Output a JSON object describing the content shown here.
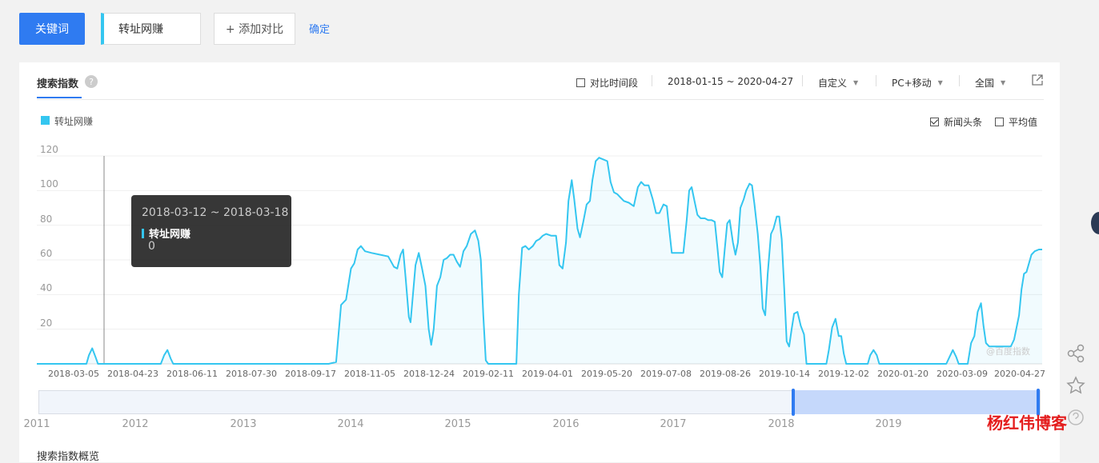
{
  "topbar": {
    "keyword_button": "关键词",
    "keyword_value": "转址网赚",
    "add_compare": "+ 添加对比",
    "confirm": "确定"
  },
  "panel": {
    "tab": "搜索指数",
    "help": "?",
    "filters": {
      "compare_period": "对比时间段",
      "date_range": "2018-01-15 ~ 2020-04-27",
      "custom": "自定义",
      "device": "PC+移动",
      "region": "全国"
    },
    "legend": "转址网赚",
    "options": {
      "news": "新闻头条",
      "avg": "平均值"
    },
    "watermark": "@百度指数",
    "bottom_title": "搜索指数概览"
  },
  "tooltip": {
    "date": "2018-03-12 ~ 2018-03-18",
    "series": "转址网赚",
    "value": "0"
  },
  "slider_years": [
    "2011",
    "2012",
    "2013",
    "2014",
    "2015",
    "2016",
    "2017",
    "2018",
    "2019"
  ],
  "brand": "杨红伟博客",
  "colors": {
    "accent": "#2f7bf1",
    "series": "#34c6f0",
    "brand_red": "#e41d1d"
  },
  "chart_data": {
    "type": "area",
    "title": "",
    "xlabel": "",
    "ylabel": "",
    "ylim": [
      0,
      120
    ],
    "yticks": [
      "120",
      "100",
      "80",
      "60",
      "40",
      "20"
    ],
    "xticks": [
      "2018-03-05",
      "2018-04-23",
      "2018-06-11",
      "2018-07-30",
      "2018-09-17",
      "2018-11-05",
      "2018-12-24",
      "2019-02-11",
      "2019-04-01",
      "2019-05-20",
      "2019-07-08",
      "2019-08-26",
      "2019-10-14",
      "2019-12-02",
      "2020-01-20",
      "2020-03-09",
      "2020-04-27"
    ],
    "series": [
      {
        "name": "转址网赚",
        "points": [
          [
            0,
            0
          ],
          [
            60,
            0
          ],
          [
            63,
            5
          ],
          [
            67,
            9
          ],
          [
            71,
            4
          ],
          [
            74,
            0
          ],
          [
            150,
            0
          ],
          [
            154,
            5
          ],
          [
            158,
            8
          ],
          [
            162,
            3
          ],
          [
            165,
            0
          ],
          [
            210,
            0
          ],
          [
            268,
            0
          ],
          [
            323,
            0
          ],
          [
            353,
            0
          ],
          [
            362,
            1
          ],
          [
            368,
            34
          ],
          [
            374,
            37
          ],
          [
            380,
            55
          ],
          [
            384,
            58
          ],
          [
            388,
            66
          ],
          [
            392,
            68
          ],
          [
            397,
            65
          ],
          [
            405,
            64
          ],
          [
            415,
            63
          ],
          [
            425,
            62
          ],
          [
            432,
            56
          ],
          [
            436,
            55
          ],
          [
            440,
            63
          ],
          [
            443,
            66
          ],
          [
            446,
            50
          ],
          [
            450,
            27
          ],
          [
            452,
            24
          ],
          [
            458,
            57
          ],
          [
            462,
            64
          ],
          [
            466,
            55
          ],
          [
            470,
            45
          ],
          [
            474,
            20
          ],
          [
            477,
            11
          ],
          [
            480,
            20
          ],
          [
            484,
            45
          ],
          [
            488,
            50
          ],
          [
            492,
            60
          ],
          [
            496,
            61
          ],
          [
            500,
            63
          ],
          [
            504,
            63
          ],
          [
            508,
            59
          ],
          [
            512,
            56
          ],
          [
            516,
            65
          ],
          [
            520,
            68
          ],
          [
            525,
            75
          ],
          [
            530,
            77
          ],
          [
            534,
            71
          ],
          [
            537,
            60
          ],
          [
            540,
            28
          ],
          [
            543,
            2
          ],
          [
            546,
            0
          ],
          [
            580,
            0
          ],
          [
            583,
            40
          ],
          [
            587,
            67
          ],
          [
            591,
            68
          ],
          [
            595,
            66
          ],
          [
            600,
            68
          ],
          [
            604,
            71
          ],
          [
            608,
            72
          ],
          [
            612,
            74
          ],
          [
            616,
            75
          ],
          [
            622,
            74
          ],
          [
            628,
            74
          ],
          [
            632,
            57
          ],
          [
            636,
            55
          ],
          [
            640,
            70
          ],
          [
            643,
            94
          ],
          [
            647,
            106
          ],
          [
            650,
            95
          ],
          [
            654,
            78
          ],
          [
            657,
            73
          ],
          [
            661,
            82
          ],
          [
            665,
            92
          ],
          [
            669,
            94
          ],
          [
            672,
            106
          ],
          [
            676,
            117
          ],
          [
            680,
            119
          ],
          [
            685,
            118
          ],
          [
            690,
            117
          ],
          [
            694,
            105
          ],
          [
            698,
            99
          ],
          [
            702,
            98
          ],
          [
            706,
            96
          ],
          [
            710,
            94
          ],
          [
            716,
            93
          ],
          [
            722,
            91
          ],
          [
            727,
            102
          ],
          [
            731,
            105
          ],
          [
            735,
            103
          ],
          [
            740,
            103
          ],
          [
            745,
            95
          ],
          [
            749,
            87
          ],
          [
            753,
            87
          ],
          [
            758,
            92
          ],
          [
            762,
            91
          ],
          [
            765,
            77
          ],
          [
            768,
            64
          ],
          [
            772,
            64
          ],
          [
            778,
            64
          ],
          [
            782,
            64
          ],
          [
            786,
            83
          ],
          [
            789,
            100
          ],
          [
            792,
            102
          ],
          [
            795,
            95
          ],
          [
            799,
            86
          ],
          [
            803,
            84
          ],
          [
            808,
            84
          ],
          [
            812,
            83
          ],
          [
            816,
            83
          ],
          [
            820,
            82
          ],
          [
            823,
            68
          ],
          [
            826,
            53
          ],
          [
            829,
            50
          ],
          [
            832,
            66
          ],
          [
            835,
            81
          ],
          [
            838,
            83
          ],
          [
            842,
            70
          ],
          [
            845,
            63
          ],
          [
            848,
            70
          ],
          [
            851,
            90
          ],
          [
            855,
            95
          ],
          [
            858,
            100
          ],
          [
            862,
            104
          ],
          [
            865,
            103
          ],
          [
            868,
            92
          ],
          [
            872,
            75
          ],
          [
            875,
            57
          ],
          [
            878,
            32
          ],
          [
            881,
            28
          ],
          [
            884,
            52
          ],
          [
            888,
            75
          ],
          [
            891,
            78
          ],
          [
            895,
            85
          ],
          [
            898,
            85
          ],
          [
            901,
            72
          ],
          [
            904,
            44
          ],
          [
            907,
            13
          ],
          [
            910,
            10
          ],
          [
            913,
            20
          ],
          [
            916,
            29
          ],
          [
            920,
            30
          ],
          [
            924,
            22
          ],
          [
            928,
            17
          ],
          [
            931,
            0
          ],
          [
            955,
            0
          ],
          [
            958,
            8
          ],
          [
            962,
            21
          ],
          [
            966,
            26
          ],
          [
            970,
            16
          ],
          [
            973,
            16
          ],
          [
            976,
            6
          ],
          [
            979,
            0
          ],
          [
            1005,
            0
          ],
          [
            1008,
            5
          ],
          [
            1012,
            8
          ],
          [
            1016,
            5
          ],
          [
            1019,
            0
          ],
          [
            1100,
            0
          ],
          [
            1104,
            4
          ],
          [
            1108,
            8
          ],
          [
            1112,
            4
          ],
          [
            1115,
            0
          ],
          [
            1126,
            0
          ],
          [
            1130,
            12
          ],
          [
            1134,
            16
          ],
          [
            1138,
            30
          ],
          [
            1142,
            35
          ],
          [
            1145,
            22
          ],
          [
            1148,
            12
          ],
          [
            1152,
            10
          ],
          [
            1160,
            10
          ],
          [
            1170,
            10
          ],
          [
            1178,
            10
          ],
          [
            1182,
            14
          ],
          [
            1185,
            21
          ],
          [
            1188,
            28
          ],
          [
            1191,
            43
          ],
          [
            1194,
            52
          ],
          [
            1197,
            53
          ],
          [
            1200,
            58
          ],
          [
            1203,
            63
          ],
          [
            1207,
            65
          ],
          [
            1212,
            66
          ],
          [
            1216,
            66
          ]
        ]
      }
    ],
    "legend": "top-left",
    "grid": true
  }
}
